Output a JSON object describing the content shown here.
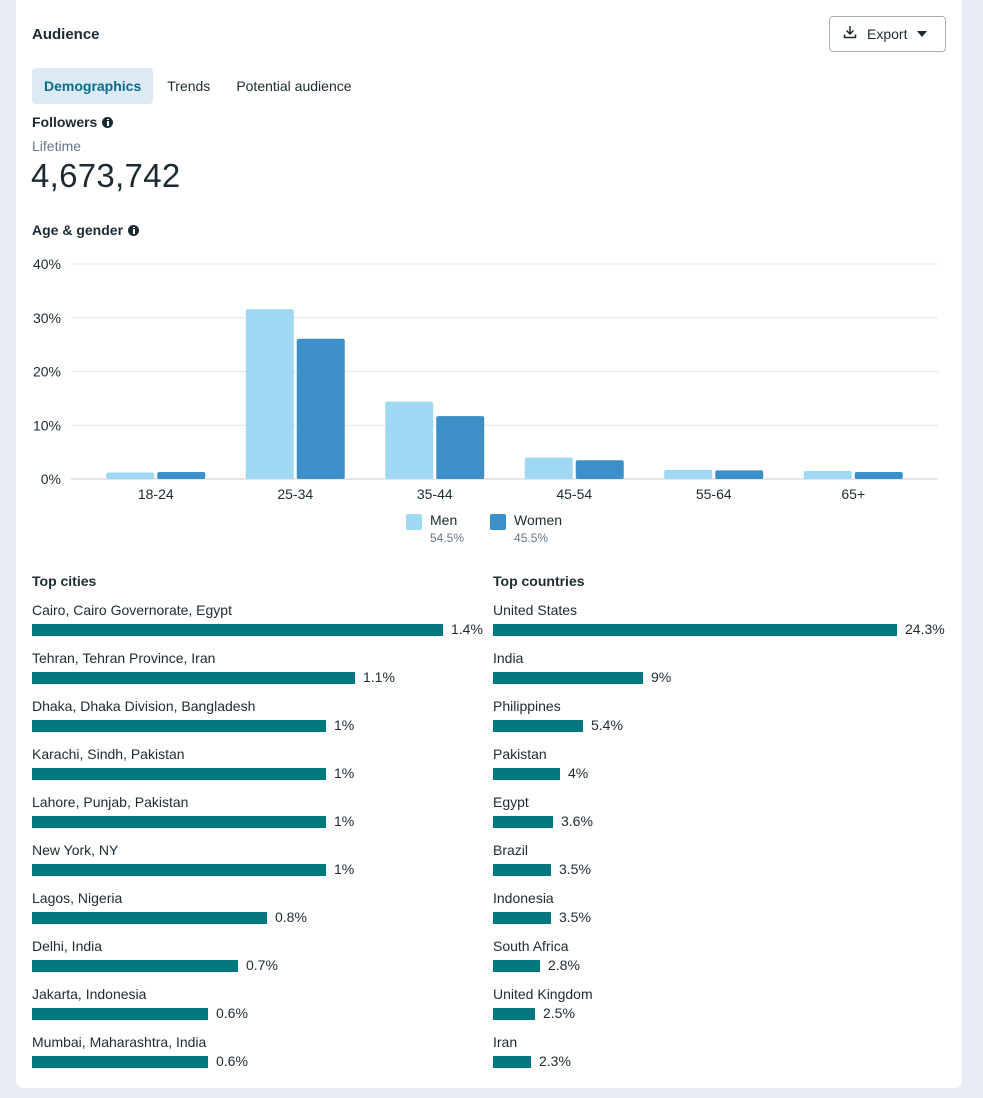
{
  "header": {
    "title": "Audience",
    "export_label": "Export"
  },
  "tabs": [
    {
      "label": "Demographics",
      "active": true
    },
    {
      "label": "Trends",
      "active": false
    },
    {
      "label": "Potential audience",
      "active": false
    }
  ],
  "followers": {
    "title": "Followers",
    "period": "Lifetime",
    "count": "4,673,742"
  },
  "age_gender": {
    "title": "Age & gender",
    "legend": [
      {
        "name": "Men",
        "pct": "54.5%",
        "color": "#9fd8f2"
      },
      {
        "name": "Women",
        "pct": "45.5%",
        "color": "#3d8fc8"
      }
    ]
  },
  "chart_data": {
    "type": "bar",
    "title": "Age & gender",
    "categories": [
      "18-24",
      "25-34",
      "35-44",
      "45-54",
      "55-64",
      "65+"
    ],
    "series": [
      {
        "name": "Men",
        "values": [
          1.2,
          31.6,
          14.4,
          4.0,
          1.7,
          1.5
        ],
        "color": "#9fd8f2"
      },
      {
        "name": "Women",
        "values": [
          1.3,
          26.1,
          11.7,
          3.5,
          1.6,
          1.3
        ],
        "color": "#3d8fc8"
      }
    ],
    "yticks": [
      "0%",
      "10%",
      "20%",
      "30%",
      "40%"
    ],
    "ylim": [
      0,
      40
    ],
    "grid": true,
    "legend_position": "bottom"
  },
  "top_cities": {
    "title": "Top cities",
    "items": [
      {
        "name": "Cairo, Cairo Governorate, Egypt",
        "value": "1.4%",
        "pct": 1.4
      },
      {
        "name": "Tehran, Tehran Province, Iran",
        "value": "1.1%",
        "pct": 1.1
      },
      {
        "name": "Dhaka, Dhaka Division, Bangladesh",
        "value": "1%",
        "pct": 1.0
      },
      {
        "name": "Karachi, Sindh, Pakistan",
        "value": "1%",
        "pct": 1.0
      },
      {
        "name": "Lahore, Punjab, Pakistan",
        "value": "1%",
        "pct": 1.0
      },
      {
        "name": "New York, NY",
        "value": "1%",
        "pct": 1.0
      },
      {
        "name": "Lagos, Nigeria",
        "value": "0.8%",
        "pct": 0.8
      },
      {
        "name": "Delhi, India",
        "value": "0.7%",
        "pct": 0.7
      },
      {
        "name": "Jakarta, Indonesia",
        "value": "0.6%",
        "pct": 0.6
      },
      {
        "name": "Mumbai, Maharashtra, India",
        "value": "0.6%",
        "pct": 0.6
      }
    ]
  },
  "top_countries": {
    "title": "Top countries",
    "items": [
      {
        "name": "United States",
        "value": "24.3%",
        "pct": 24.3
      },
      {
        "name": "India",
        "value": "9%",
        "pct": 9.0
      },
      {
        "name": "Philippines",
        "value": "5.4%",
        "pct": 5.4
      },
      {
        "name": "Pakistan",
        "value": "4%",
        "pct": 4.0
      },
      {
        "name": "Egypt",
        "value": "3.6%",
        "pct": 3.6
      },
      {
        "name": "Brazil",
        "value": "3.5%",
        "pct": 3.5
      },
      {
        "name": "Indonesia",
        "value": "3.5%",
        "pct": 3.5
      },
      {
        "name": "South Africa",
        "value": "2.8%",
        "pct": 2.8
      },
      {
        "name": "United Kingdom",
        "value": "2.5%",
        "pct": 2.5
      },
      {
        "name": "Iran",
        "value": "2.3%",
        "pct": 2.3
      }
    ]
  },
  "icons": {
    "export": "download-icon",
    "dropdown": "caret-down-icon",
    "info": "info-icon"
  },
  "colors": {
    "bar": "#00787d",
    "active_tab_bg": "#dbeaf4",
    "active_tab_text": "#0a6a8c"
  }
}
